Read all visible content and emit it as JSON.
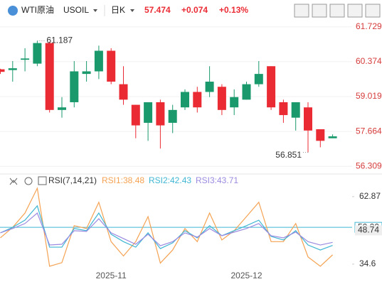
{
  "header": {
    "symbol_name": "WTI原油",
    "symbol_code": "USOIL",
    "period": "日K",
    "price": "57.474",
    "change": "+0.074",
    "change_pct": "+0.13%"
  },
  "chart_data": [
    {
      "type": "candlestick",
      "categories": [
        null,
        null,
        null,
        null,
        null,
        null,
        null,
        null,
        null,
        "2025-11",
        null,
        null,
        null,
        null,
        null,
        null,
        null,
        null,
        null,
        null,
        "2025-12",
        null,
        null,
        null,
        null,
        null,
        null,
        null
      ],
      "open": [
        60.08,
        60.05,
        60.45,
        60.3,
        61.1,
        58.5,
        58.8,
        59.9,
        60.0,
        60.8,
        59.5,
        58.7,
        58.0,
        58.8,
        58.0,
        58.6,
        59.2,
        59.2,
        59.4,
        58.6,
        58.9,
        59.5,
        60.2,
        58.8,
        58.2,
        58.6,
        57.75,
        57.4
      ],
      "close": [
        59.98,
        60.12,
        60.5,
        61.1,
        58.5,
        58.6,
        60.0,
        60.0,
        60.8,
        59.6,
        58.9,
        57.9,
        58.8,
        57.9,
        58.5,
        59.2,
        58.6,
        59.6,
        58.5,
        59.0,
        59.5,
        59.9,
        58.6,
        58.3,
        58.8,
        57.7,
        57.3,
        57.474
      ],
      "high": [
        60.1,
        60.4,
        60.9,
        61.187,
        61.15,
        59.0,
        60.4,
        60.4,
        61.0,
        60.9,
        60.2,
        58.7,
        58.8,
        58.9,
        58.7,
        59.3,
        59.4,
        60.2,
        59.5,
        59.3,
        59.6,
        60.4,
        60.2,
        58.9,
        58.8,
        58.8,
        57.75,
        57.55
      ],
      "low": [
        59.9,
        59.6,
        60.0,
        60.2,
        58.4,
        58.2,
        58.6,
        59.6,
        59.7,
        59.5,
        58.7,
        57.4,
        57.3,
        57.0,
        57.6,
        58.5,
        58.4,
        59.0,
        58.3,
        58.3,
        58.9,
        59.4,
        58.5,
        58.0,
        57.7,
        56.851,
        57.05,
        57.4
      ],
      "up_color": "#1a9a6c",
      "down_color": "#eb2b34",
      "ylim": [
        56.15,
        62.0
      ],
      "yticks": [
        61.729,
        60.374,
        59.019,
        57.664,
        56.309
      ],
      "grid": true,
      "annotations": [
        {
          "label": "61.187",
          "value": 61.187,
          "index": 3
        },
        {
          "label": "56.851",
          "value": 56.851,
          "index": 25
        }
      ]
    },
    {
      "type": "line",
      "title": "RSI(7,14,21)",
      "series": [
        {
          "name": "RSI1",
          "label": "RSI1:38.48",
          "color": "#f5a252",
          "values": [
            45.6,
            50,
            56,
            66.4,
            33.7,
            35.2,
            50.7,
            49.5,
            60.5,
            44,
            38,
            44,
            54.5,
            35,
            40.5,
            49.5,
            44,
            56,
            44.7,
            48.6,
            54.5,
            60.5,
            44,
            44,
            51.6,
            37.6,
            33.7,
            38.48
          ]
        },
        {
          "name": "RSI2",
          "label": "RSI2:42.43",
          "color": "#3fb6d3",
          "values": [
            47.7,
            50,
            53,
            59,
            41.7,
            41.7,
            49.5,
            48.6,
            56,
            47.1,
            44,
            41.7,
            47.7,
            41.1,
            43.5,
            48.6,
            45.6,
            50.7,
            46.5,
            48.6,
            50.7,
            53,
            46.2,
            44.7,
            48.6,
            42.6,
            40.5,
            42.43
          ]
        },
        {
          "name": "RSI3",
          "label": "RSI3:43.71",
          "color": "#9b8ae0",
          "values": [
            47.7,
            49.5,
            51.6,
            56,
            42.6,
            42.9,
            48.6,
            48.3,
            53.6,
            47.7,
            45.3,
            42.9,
            47.1,
            42.3,
            44,
            47.7,
            45.9,
            49.5,
            46.5,
            48,
            49.5,
            51.6,
            46.5,
            45.6,
            48,
            44,
            42.6,
            43.71
          ]
        }
      ],
      "ylim": [
        31.6,
        67.3
      ],
      "yticks": [
        62.87,
        34.6
      ],
      "reference_line": {
        "value": 50,
        "label": "50.00"
      },
      "current_marker": {
        "value": 48.74,
        "label": "48.74"
      }
    }
  ]
}
